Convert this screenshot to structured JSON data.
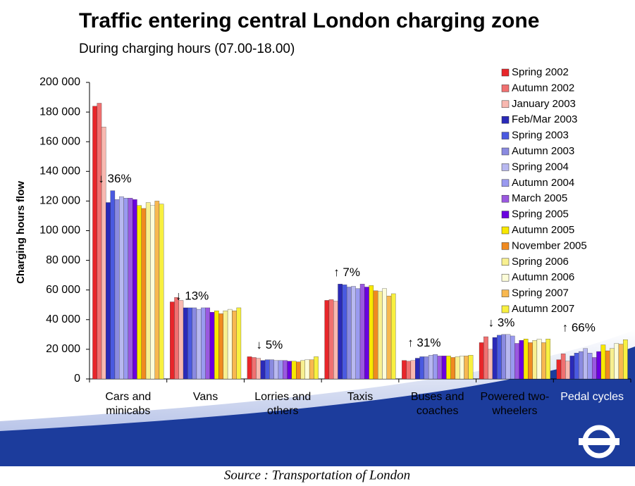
{
  "chart_data": {
    "type": "bar",
    "title": "Traffic entering central London charging zone",
    "subtitle": "During charging hours (07.00-18.00)",
    "y_label": "Charging hours flow",
    "source": "Source : Transportation of London",
    "categories": [
      "Cars and minicabs",
      "Vans",
      "Lorries and others",
      "Taxis",
      "Buses and coaches",
      "Powered two-wheelers",
      "Pedal cycles"
    ],
    "annotations": [
      "↓ 36%",
      "↓ 13%",
      "↓ 5%",
      "↑ 7%",
      "↑ 31%",
      "↓ 3%",
      "↑ 66%"
    ],
    "ylim": [
      0,
      200000
    ],
    "yticks": [
      0,
      {
        "value": 20000,
        "label": "20 000"
      },
      {
        "value": 40000,
        "label": "40 000"
      },
      {
        "value": 60000,
        "label": "60 000"
      },
      {
        "value": 80000,
        "label": "80 000"
      },
      {
        "value": 100000,
        "label": "100 000"
      },
      {
        "value": 120000,
        "label": "120 000"
      },
      {
        "value": 140000,
        "label": "140 000"
      },
      {
        "value": 160000,
        "label": "160 000"
      },
      {
        "value": 180000,
        "label": "180 000"
      },
      {
        "value": 200000,
        "label": "200 000"
      }
    ],
    "series": [
      {
        "name": "Spring 2002",
        "color": "#e8262a",
        "values": [
          184000,
          52000,
          15000,
          53000,
          12500,
          24500,
          13000
        ]
      },
      {
        "name": "Autumn 2002",
        "color": "#f07070",
        "values": [
          186000,
          55000,
          14500,
          53500,
          12000,
          28500,
          17000
        ]
      },
      {
        "name": "January 2003",
        "color": "#f8b8b0",
        "values": [
          170000,
          53000,
          14000,
          52500,
          12500,
          20000,
          12000
        ]
      },
      {
        "name": "Feb/Mar 2003",
        "color": "#2a2ab8",
        "values": [
          119000,
          48000,
          12500,
          64000,
          14000,
          28000,
          15500
        ]
      },
      {
        "name": "Spring 2003",
        "color": "#4a5ae0",
        "values": [
          127000,
          48000,
          13000,
          63500,
          15000,
          29500,
          17500
        ]
      },
      {
        "name": "Autumn 2003",
        "color": "#8a8ae0",
        "values": [
          121000,
          48000,
          13000,
          62000,
          15000,
          30000,
          18500
        ]
      },
      {
        "name": "Spring 2004",
        "color": "#b8b8f0",
        "values": [
          123000,
          47000,
          12500,
          62500,
          16000,
          30000,
          20500
        ]
      },
      {
        "name": "Autumn 2004",
        "color": "#9a9af0",
        "values": [
          122000,
          48000,
          12500,
          61000,
          16500,
          29000,
          17500
        ]
      },
      {
        "name": "March 2005",
        "color": "#9a58e0",
        "values": [
          122000,
          48000,
          12500,
          64000,
          15500,
          24000,
          14500
        ]
      },
      {
        "name": "Spring 2005",
        "color": "#6a00e0",
        "values": [
          121000,
          45000,
          12000,
          62000,
          15500,
          26000,
          18500
        ]
      },
      {
        "name": "Autumn 2005",
        "color": "#f8e800",
        "values": [
          117000,
          46000,
          12000,
          63000,
          15500,
          27000,
          23000
        ]
      },
      {
        "name": "November 2005",
        "color": "#f08a20",
        "values": [
          115000,
          44000,
          11500,
          59500,
          14500,
          24500,
          19000
        ]
      },
      {
        "name": "Spring 2006",
        "color": "#f8f090",
        "values": [
          119000,
          46000,
          12500,
          59000,
          15000,
          26000,
          20500
        ]
      },
      {
        "name": "Autumn 2006",
        "color": "#fcfcd8",
        "values": [
          117000,
          47000,
          13000,
          61000,
          15500,
          27000,
          24000
        ]
      },
      {
        "name": "Spring 2007",
        "color": "#f8b850",
        "values": [
          120000,
          46000,
          13000,
          56000,
          15500,
          24500,
          23500
        ]
      },
      {
        "name": "Autumn 2007",
        "color": "#f8f040",
        "values": [
          118000,
          48000,
          15000,
          57500,
          16000,
          27000,
          26500
        ]
      }
    ]
  }
}
